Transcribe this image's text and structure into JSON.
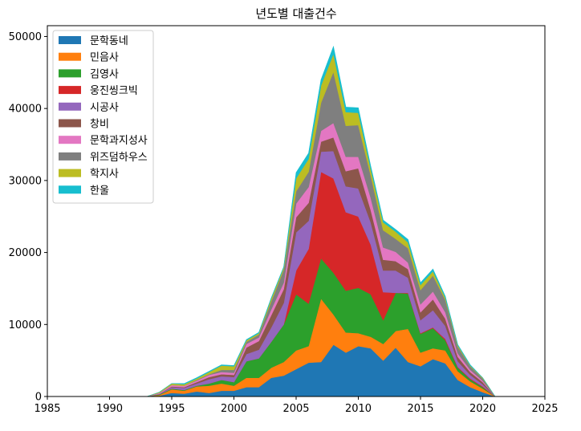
{
  "chart_data": {
    "type": "area",
    "stacked": true,
    "title": "년도별 대출건수",
    "xlabel": "",
    "ylabel": "",
    "xlim": [
      1985,
      2025
    ],
    "ylim": [
      0,
      51500
    ],
    "xticks": [
      1985,
      1990,
      1995,
      2000,
      2005,
      2010,
      2015,
      2020,
      2025
    ],
    "yticks": [
      0,
      10000,
      20000,
      30000,
      40000,
      50000
    ],
    "grid": false,
    "legend_position": "upper-left",
    "x": [
      1988,
      1989,
      1990,
      1991,
      1992,
      1993,
      1994,
      1995,
      1996,
      1997,
      1998,
      1999,
      2000,
      2001,
      2002,
      2003,
      2004,
      2005,
      2006,
      2007,
      2008,
      2009,
      2010,
      2011,
      2012,
      2013,
      2014,
      2015,
      2016,
      2017,
      2018,
      2019,
      2020,
      2021,
      2022,
      2023,
      2024
    ],
    "series": [
      {
        "name": "문학동네",
        "color": "#1f77b4",
        "values": [
          0,
          0,
          0,
          0,
          0,
          0,
          100,
          500,
          400,
          700,
          500,
          800,
          800,
          1300,
          1300,
          2600,
          2900,
          3800,
          4700,
          4800,
          7200,
          6100,
          7000,
          6700,
          5000,
          6800,
          4800,
          4200,
          5200,
          4600,
          2300,
          1300,
          600,
          0,
          0,
          0,
          0
        ]
      },
      {
        "name": "민음사",
        "color": "#ff7f0e",
        "values": [
          0,
          0,
          0,
          0,
          0,
          0,
          100,
          500,
          400,
          700,
          1000,
          1000,
          700,
          1300,
          1300,
          1400,
          1900,
          2600,
          2300,
          8800,
          4200,
          2800,
          1800,
          1600,
          2300,
          2300,
          4600,
          1900,
          1500,
          1800,
          1200,
          800,
          500,
          0,
          0,
          0,
          0
        ]
      },
      {
        "name": "김영사",
        "color": "#2ca02c",
        "values": [
          0,
          0,
          0,
          0,
          0,
          0,
          100,
          100,
          100,
          100,
          300,
          500,
          500,
          2300,
          2700,
          3600,
          5200,
          7800,
          5900,
          5600,
          5800,
          5800,
          6300,
          5900,
          3300,
          5300,
          4900,
          2600,
          2800,
          1400,
          500,
          300,
          200,
          0,
          0,
          0,
          0
        ]
      },
      {
        "name": "웅진씽크빅",
        "color": "#d62728",
        "values": [
          0,
          0,
          0,
          0,
          0,
          0,
          0,
          0,
          0,
          0,
          0,
          0,
          0,
          0,
          0,
          0,
          0,
          3300,
          7600,
          12000,
          13100,
          10900,
          9900,
          6900,
          3900,
          0,
          100,
          100,
          100,
          200,
          100,
          100,
          100,
          0,
          0,
          0,
          0
        ]
      },
      {
        "name": "시공사",
        "color": "#9467bd",
        "values": [
          0,
          0,
          0,
          0,
          0,
          0,
          100,
          200,
          300,
          300,
          600,
          500,
          700,
          1000,
          1200,
          2000,
          3000,
          5300,
          3900,
          2800,
          3800,
          3600,
          3900,
          3100,
          3000,
          3100,
          2100,
          1800,
          2400,
          1800,
          800,
          500,
          300,
          0,
          0,
          0,
          0
        ]
      },
      {
        "name": "창비",
        "color": "#8c564b",
        "values": [
          0,
          0,
          0,
          0,
          0,
          0,
          0,
          100,
          100,
          200,
          300,
          300,
          300,
          900,
          1200,
          1700,
          1900,
          2100,
          2500,
          1400,
          1900,
          2100,
          2800,
          1700,
          1500,
          1300,
          1200,
          1100,
          1500,
          1000,
          600,
          400,
          300,
          0,
          0,
          0,
          0
        ]
      },
      {
        "name": "문학과지성사",
        "color": "#e377c2",
        "values": [
          0,
          0,
          0,
          0,
          0,
          0,
          100,
          200,
          200,
          200,
          300,
          300,
          300,
          500,
          500,
          800,
          900,
          1900,
          2200,
          1500,
          2000,
          2000,
          1600,
          1700,
          1700,
          1300,
          900,
          1100,
          1100,
          900,
          500,
          300,
          200,
          0,
          0,
          0,
          0
        ]
      },
      {
        "name": "위즈덤하우스",
        "color": "#7f7f7f",
        "values": [
          0,
          0,
          0,
          0,
          0,
          0,
          0,
          0,
          0,
          100,
          100,
          300,
          400,
          300,
          400,
          1100,
          1800,
          1700,
          2100,
          3900,
          7100,
          4300,
          4400,
          3100,
          2400,
          1800,
          2000,
          2000,
          2200,
          1700,
          900,
          500,
          300,
          0,
          0,
          0,
          0
        ]
      },
      {
        "name": "학지사",
        "color": "#bcbd22",
        "values": [
          0,
          0,
          0,
          0,
          0,
          0,
          100,
          200,
          200,
          200,
          300,
          600,
          500,
          200,
          200,
          400,
          300,
          1800,
          1800,
          2400,
          2500,
          1900,
          1700,
          900,
          1100,
          1000,
          800,
          700,
          600,
          300,
          200,
          100,
          100,
          0,
          0,
          0,
          0
        ]
      },
      {
        "name": "한울",
        "color": "#17becf",
        "values": [
          0,
          0,
          0,
          0,
          0,
          0,
          0,
          0,
          100,
          100,
          100,
          100,
          100,
          100,
          100,
          100,
          100,
          800,
          800,
          800,
          1000,
          700,
          700,
          400,
          300,
          300,
          400,
          300,
          300,
          200,
          100,
          100,
          0,
          0,
          0,
          0,
          0
        ]
      }
    ]
  }
}
